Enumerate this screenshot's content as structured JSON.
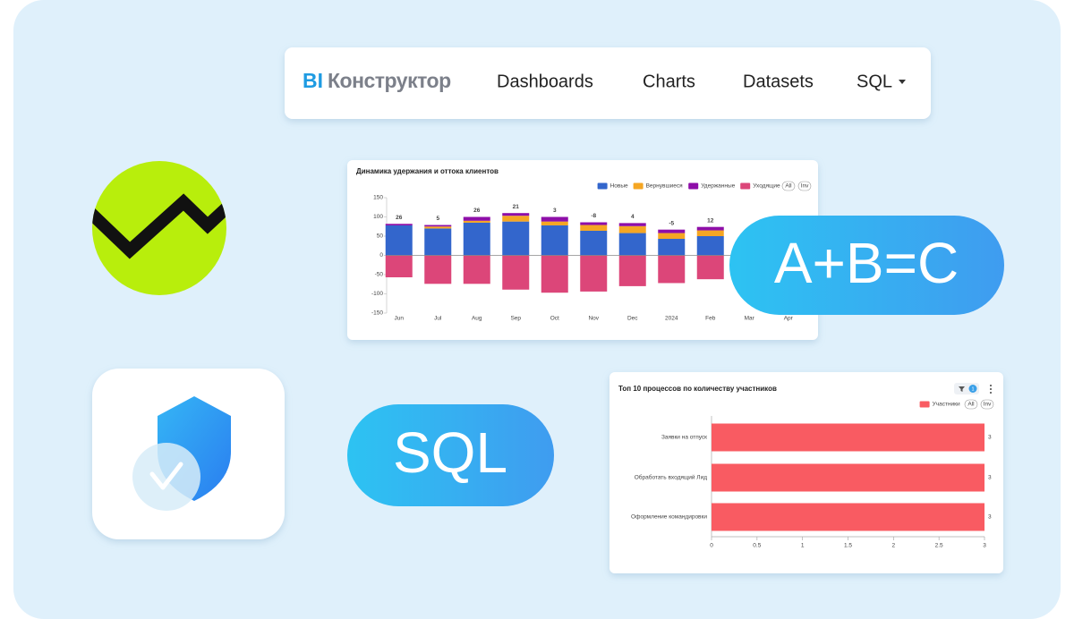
{
  "nav": {
    "brand_prefix": "BI",
    "brand": "Конструктор",
    "items": [
      "Dashboards",
      "Charts",
      "Datasets",
      "SQL"
    ]
  },
  "badges": {
    "formula": "A+B=C",
    "sql": "SQL"
  },
  "chart_data": [
    {
      "type": "bar",
      "stacked": true,
      "title": "Динамика удержания и оттока клиентов",
      "categories": [
        "Jun",
        "Jul",
        "Aug",
        "Sep",
        "Oct",
        "Nov",
        "Dec",
        "2024",
        "Feb",
        "Mar",
        "Apr"
      ],
      "series": [
        {
          "name": "Новые",
          "color": "#3366cc",
          "values": [
            78,
            70,
            85,
            88,
            78,
            64,
            58,
            43,
            50,
            null,
            null
          ]
        },
        {
          "name": "Вернувшиеся",
          "color": "#f5a623",
          "values": [
            0,
            5,
            5,
            15,
            10,
            15,
            18,
            15,
            15,
            null,
            null
          ]
        },
        {
          "name": "Удержанные",
          "color": "#8e0ea8",
          "values": [
            4,
            4,
            10,
            7,
            12,
            7,
            8,
            9,
            9,
            null,
            null
          ]
        },
        {
          "name": "Уходящие",
          "color": "#dc4679",
          "values": [
            -57,
            -74,
            -74,
            -89,
            -97,
            -94,
            -80,
            -72,
            -62,
            null,
            null
          ]
        }
      ],
      "totals": [
        26,
        5,
        26,
        21,
        3,
        -8,
        4,
        -5,
        12,
        null,
        null
      ],
      "ylim": [
        -150,
        150
      ],
      "yticks": [
        -150,
        -100,
        -50,
        0,
        50,
        100,
        150
      ],
      "legend_buttons": [
        "All",
        "Inv"
      ]
    },
    {
      "type": "bar",
      "orientation": "horizontal",
      "title": "Топ 10 процессов по количеству участников",
      "categories": [
        "Заявки на отпуск",
        "Обработать входящий Лид",
        "Оформление командировки"
      ],
      "series": [
        {
          "name": "Участники",
          "color": "#f95b62",
          "values": [
            3,
            3,
            3
          ]
        }
      ],
      "xlim": [
        0,
        3
      ],
      "xticks": [
        0,
        0.5,
        1,
        1.5,
        2,
        2.5,
        3
      ],
      "legend_buttons": [
        "All",
        "Inv"
      ],
      "filter_count": 1
    }
  ]
}
